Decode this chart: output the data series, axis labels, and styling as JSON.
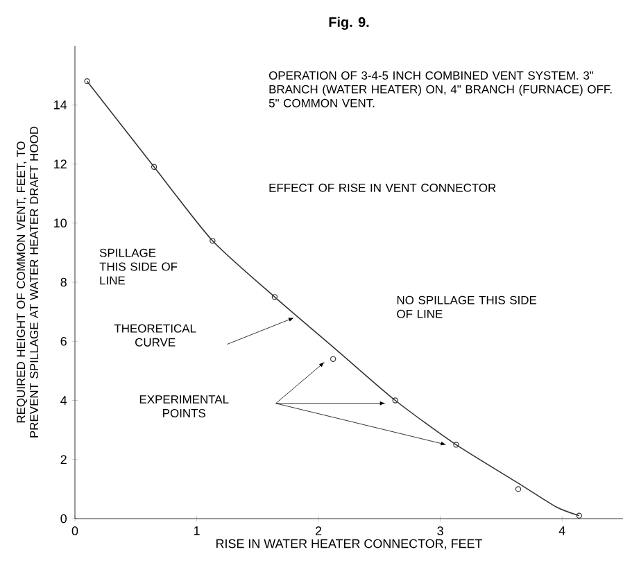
{
  "chart_data": {
    "type": "line",
    "title": "Fig. 9.",
    "xlabel": "RISE IN WATER HEATER CONNECTOR, FEET",
    "ylabel": "REQUIRED HEIGHT OF COMMON VENT, FEET, TO PREVENT SPILLAGE AT WATER HEATER DRAFT HOOD",
    "xlim": [
      0,
      4.5
    ],
    "ylim": [
      0,
      16
    ],
    "xticks": [
      0,
      1,
      2,
      3,
      4
    ],
    "yticks": [
      0,
      2,
      4,
      6,
      8,
      10,
      12,
      14
    ],
    "grid": false,
    "series": [
      {
        "color": "#333333",
        "marker": "none",
        "x": [
          0.1,
          0.65,
          1.13,
          1.64,
          2.15,
          2.63,
          3.13,
          3.64,
          3.95,
          4.14
        ],
        "values": [
          14.8,
          11.9,
          9.4,
          7.5,
          5.7,
          4.0,
          2.5,
          1.2,
          0.4,
          0.1
        ]
      },
      {
        "type": "scatter",
        "color": "#333333",
        "marker": "circle",
        "x": [
          0.1,
          0.65,
          1.13,
          1.64,
          2.12,
          2.63,
          3.13,
          3.64,
          4.14
        ],
        "values": [
          14.8,
          11.9,
          9.4,
          7.5,
          5.4,
          4.0,
          2.5,
          1.0,
          0.1
        ]
      }
    ],
    "annotations": [
      "OPERATION OF 3-4-5 INCH COMBINED VENT SYSTEM. 3\" BRANCH (WATER HEATER) ON, 4\" BRANCH (FURNACE) OFF. 5\" COMMON VENT.",
      "EFFECT OF RISE IN VENT CONNECTOR",
      "SPILLAGE THIS SIDE OF LINE",
      "NO SPILLAGE THIS SIDE OF LINE",
      "THEORETICAL CURVE",
      "EXPERIMENTAL POINTS"
    ]
  }
}
